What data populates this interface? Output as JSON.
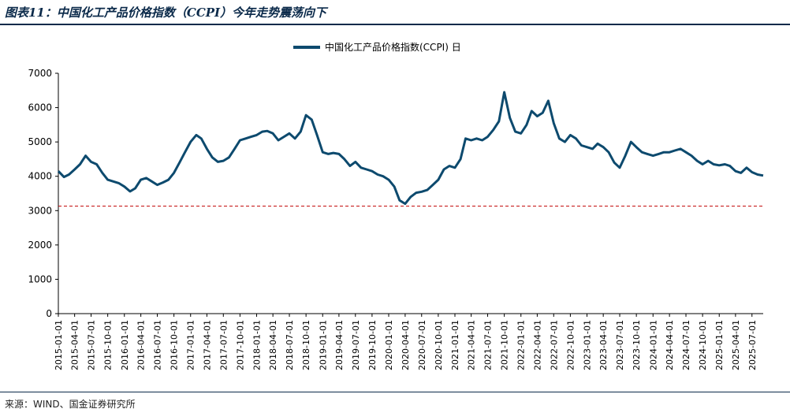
{
  "figure": {
    "title": "图表11：中国化工产品价格指数（CCPI）今年走势震荡向下",
    "source": "来源：WIND、国金证券研究所"
  },
  "colors": {
    "series": "#0d4a6e",
    "reference": "#c00000",
    "rule": "#0b2a4a"
  },
  "chart_data": {
    "type": "line",
    "title": "",
    "xlabel": "",
    "ylabel": "",
    "ylim": [
      0,
      7000
    ],
    "yticks": [
      "0",
      "1000",
      "2000",
      "3000",
      "4000",
      "5000",
      "6000",
      "7000"
    ],
    "grid": false,
    "legend": {
      "position": "top-center",
      "entries": [
        "中国化工产品价格指数(CCPI) 日"
      ]
    },
    "x_tick_labels": [
      "2015-01-01",
      "2015-04-01",
      "2015-07-01",
      "2015-10-01",
      "2016-01-01",
      "2016-04-01",
      "2016-07-01",
      "2016-10-01",
      "2017-01-01",
      "2017-04-01",
      "2017-07-01",
      "2017-10-01",
      "2018-01-01",
      "2018-04-01",
      "2018-07-01",
      "2018-10-01",
      "2019-01-01",
      "2019-04-01",
      "2019-07-01",
      "2019-10-01",
      "2020-01-01",
      "2020-04-01",
      "2020-07-01",
      "2020-10-01",
      "2021-01-01",
      "2021-04-01",
      "2021-07-01",
      "2021-10-01",
      "2022-01-01",
      "2022-04-01",
      "2022-07-01",
      "2022-10-01",
      "2023-01-01",
      "2023-04-01",
      "2023-07-01",
      "2023-10-01",
      "2024-01-01",
      "2024-04-01",
      "2024-07-01",
      "2024-10-01",
      "2025-01-01",
      "2025-04-01",
      "2025-07-01"
    ],
    "reference_line": {
      "y": 3130,
      "style": "dashed"
    },
    "series": [
      {
        "name": "中国化工产品价格指数(CCPI) 日",
        "x": [
          "2015-01-01",
          "2015-02-01",
          "2015-03-01",
          "2015-04-01",
          "2015-05-01",
          "2015-06-01",
          "2015-07-01",
          "2015-08-01",
          "2015-09-01",
          "2015-10-01",
          "2015-11-01",
          "2015-12-01",
          "2016-01-01",
          "2016-02-01",
          "2016-03-01",
          "2016-04-01",
          "2016-05-01",
          "2016-06-01",
          "2016-07-01",
          "2016-08-01",
          "2016-09-01",
          "2016-10-01",
          "2016-11-01",
          "2016-12-01",
          "2017-01-01",
          "2017-02-01",
          "2017-03-01",
          "2017-04-01",
          "2017-05-01",
          "2017-06-01",
          "2017-07-01",
          "2017-08-01",
          "2017-09-01",
          "2017-10-01",
          "2017-11-01",
          "2017-12-01",
          "2018-01-01",
          "2018-02-01",
          "2018-03-01",
          "2018-04-01",
          "2018-05-01",
          "2018-06-01",
          "2018-07-01",
          "2018-08-01",
          "2018-09-01",
          "2018-10-01",
          "2018-11-01",
          "2018-12-01",
          "2019-01-01",
          "2019-02-01",
          "2019-03-01",
          "2019-04-01",
          "2019-05-01",
          "2019-06-01",
          "2019-07-01",
          "2019-08-01",
          "2019-09-01",
          "2019-10-01",
          "2019-11-01",
          "2019-12-01",
          "2020-01-01",
          "2020-02-01",
          "2020-03-01",
          "2020-04-01",
          "2020-05-01",
          "2020-06-01",
          "2020-07-01",
          "2020-08-01",
          "2020-09-01",
          "2020-10-01",
          "2020-11-01",
          "2020-12-01",
          "2021-01-01",
          "2021-02-01",
          "2021-03-01",
          "2021-04-01",
          "2021-05-01",
          "2021-06-01",
          "2021-07-01",
          "2021-08-01",
          "2021-09-01",
          "2021-10-01",
          "2021-11-01",
          "2021-12-01",
          "2022-01-01",
          "2022-02-01",
          "2022-03-01",
          "2022-04-01",
          "2022-05-01",
          "2022-06-01",
          "2022-07-01",
          "2022-08-01",
          "2022-09-01",
          "2022-10-01",
          "2022-11-01",
          "2022-12-01",
          "2023-01-01",
          "2023-02-01",
          "2023-03-01",
          "2023-04-01",
          "2023-05-01",
          "2023-06-01",
          "2023-07-01",
          "2023-08-01",
          "2023-09-01",
          "2023-10-01",
          "2023-11-01",
          "2023-12-01",
          "2024-01-01",
          "2024-02-01",
          "2024-03-01",
          "2024-04-01",
          "2024-05-01",
          "2024-06-01",
          "2024-07-01",
          "2024-08-01",
          "2024-09-01",
          "2024-10-01",
          "2024-11-01",
          "2024-12-01",
          "2025-01-01",
          "2025-02-01",
          "2025-03-01",
          "2025-04-01",
          "2025-05-01",
          "2025-06-01",
          "2025-07-01",
          "2025-08-01",
          "2025-09-01"
        ],
        "values": [
          4150,
          3980,
          4050,
          4200,
          4350,
          4600,
          4420,
          4350,
          4100,
          3900,
          3850,
          3800,
          3700,
          3560,
          3650,
          3900,
          3950,
          3850,
          3750,
          3820,
          3900,
          4100,
          4400,
          4700,
          5000,
          5200,
          5100,
          4800,
          4550,
          4420,
          4450,
          4550,
          4800,
          5050,
          5100,
          5150,
          5200,
          5300,
          5320,
          5250,
          5050,
          5150,
          5250,
          5100,
          5300,
          5780,
          5650,
          5200,
          4700,
          4650,
          4680,
          4650,
          4500,
          4300,
          4420,
          4250,
          4200,
          4150,
          4050,
          4000,
          3900,
          3700,
          3300,
          3200,
          3400,
          3520,
          3550,
          3600,
          3750,
          3900,
          4200,
          4300,
          4250,
          4500,
          5100,
          5050,
          5100,
          5050,
          5150,
          5350,
          5600,
          6450,
          5700,
          5300,
          5250,
          5500,
          5900,
          5750,
          5850,
          6200,
          5550,
          5100,
          5000,
          5200,
          5100,
          4900,
          4850,
          4800,
          4950,
          4850,
          4700,
          4400,
          4250,
          4600,
          5000,
          4850,
          4700,
          4650,
          4600,
          4650,
          4700,
          4700,
          4750,
          4800,
          4700,
          4600,
          4450,
          4350,
          4450,
          4350,
          4320,
          4350,
          4300,
          4150,
          4100,
          4250,
          4120,
          4050,
          4020
        ]
      }
    ]
  }
}
